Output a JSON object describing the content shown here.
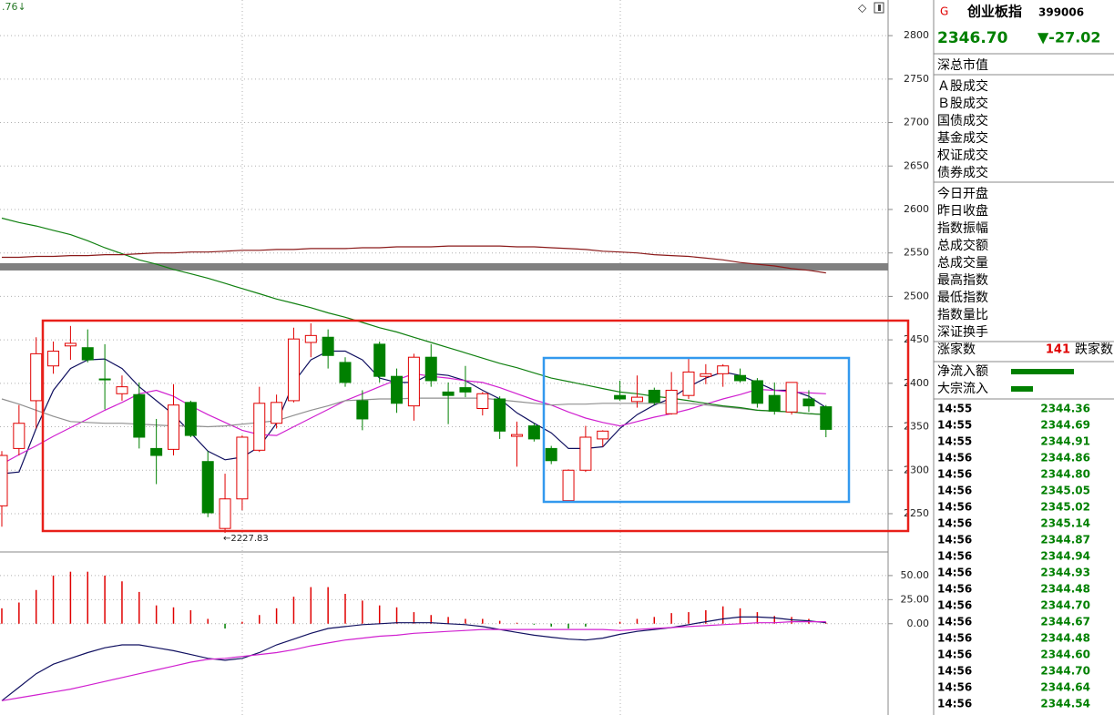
{
  "header": {
    "top_left": ".76↓"
  },
  "chart_data": [
    {
      "type": "candlestick",
      "categories": [
        null,
        null,
        null,
        null,
        null,
        null,
        null,
        null,
        null,
        null,
        null,
        null,
        null,
        null,
        null,
        null,
        null,
        null,
        null,
        null,
        null,
        null,
        null,
        null,
        null,
        null,
        null,
        null,
        null,
        null,
        null,
        null,
        null,
        null,
        null,
        null,
        null,
        null,
        null,
        null,
        null,
        null,
        null,
        null,
        null,
        null,
        null,
        null,
        null
      ],
      "open": [
        2259,
        2325,
        2380,
        2420,
        2443,
        2441,
        2405,
        2388,
        2387,
        2325,
        2324,
        2378,
        2310,
        2233,
        2267,
        2323,
        2354,
        2380,
        2447,
        2453,
        2424,
        2380,
        2445,
        2408,
        2374,
        2430,
        2390,
        2395,
        2371,
        2382,
        2339,
        2351,
        2325,
        2265,
        2300,
        2336,
        2386,
        2379,
        2392,
        2365,
        2386,
        2408,
        2411,
        2409,
        2403,
        2386,
        2367,
        2382,
        2373
      ],
      "high": [
        2322,
        2375,
        2453,
        2448,
        2466,
        2462,
        2445,
        2409,
        2401,
        2359,
        2399,
        2380,
        2322,
        2296,
        2340,
        2396,
        2387,
        2464,
        2469,
        2462,
        2430,
        2392,
        2448,
        2417,
        2434,
        2445,
        2401,
        2420,
        2390,
        2385,
        2356,
        2354,
        2328,
        2301,
        2351,
        2346,
        2403,
        2409,
        2395,
        2413,
        2430,
        2422,
        2422,
        2417,
        2406,
        2401,
        2401,
        2392,
        2375
      ],
      "low": [
        2235,
        2317,
        2348,
        2411,
        2427,
        2424,
        2370,
        2380,
        2325,
        2284,
        2317,
        2338,
        2246,
        2227.83,
        2254,
        2321,
        2348,
        2378,
        2430,
        2417,
        2396,
        2346,
        2401,
        2366,
        2357,
        2396,
        2353,
        2384,
        2363,
        2336,
        2304,
        2333,
        2307,
        2265,
        2298,
        2327,
        2380,
        2372,
        2375,
        2364,
        2382,
        2399,
        2396,
        2401,
        2372,
        2364,
        2364,
        2367,
        2338
      ],
      "close": [
        2317,
        2354,
        2434,
        2437,
        2446,
        2427,
        2404,
        2396,
        2338,
        2317,
        2375,
        2340,
        2251,
        2267,
        2338,
        2377,
        2378,
        2451,
        2455,
        2432,
        2401,
        2359,
        2408,
        2377,
        2430,
        2403,
        2386,
        2390,
        2388,
        2345,
        2341,
        2336,
        2311,
        2300,
        2338,
        2345,
        2382,
        2384,
        2378,
        2392,
        2413,
        2411,
        2420,
        2403,
        2377,
        2368,
        2401,
        2374,
        2347
      ],
      "up_color": "#e00000",
      "down_color": "#008000",
      "series": [
        {
          "color": "#101060",
          "values": [
            2296,
            2298,
            2348,
            2392,
            2417,
            2427,
            2428,
            2417,
            2396,
            2380,
            2364,
            2343,
            2322,
            2312,
            2315,
            2327,
            2354,
            2401,
            2427,
            2437,
            2437,
            2427,
            2406,
            2401,
            2401,
            2411,
            2409,
            2403,
            2392,
            2382,
            2366,
            2354,
            2343,
            2325,
            2325,
            2327,
            2348,
            2364,
            2375,
            2383,
            2396,
            2406,
            2413,
            2409,
            2401,
            2392,
            2392,
            2385,
            2372
          ]
        },
        {
          "color": "#d020d0",
          "values": [
            2307,
            2318,
            2328,
            2339,
            2349,
            2359,
            2369,
            2378,
            2388,
            2392,
            2385,
            2374,
            2364,
            2355,
            2346,
            2341,
            2340,
            2350,
            2360,
            2370,
            2380,
            2388,
            2396,
            2404,
            2411,
            2408,
            2406,
            2403,
            2401,
            2395,
            2388,
            2381,
            2375,
            2367,
            2360,
            2355,
            2351,
            2356,
            2361,
            2365,
            2370,
            2376,
            2382,
            2387,
            2393,
            2392,
            2390,
            2389,
            2388
          ]
        },
        {
          "color": "#909090",
          "values": [
            2382,
            2376,
            2369,
            2362,
            2356,
            2355,
            2354,
            2354,
            2353,
            2352,
            2351,
            2351,
            2350,
            2351,
            2353,
            2355,
            2357,
            2363,
            2369,
            2374,
            2380,
            2381,
            2382,
            2382,
            2383,
            2383,
            2383,
            2383,
            2383,
            2381,
            2379,
            2377,
            2375,
            2376,
            2376,
            2377,
            2377,
            2377,
            2377,
            2377,
            2377,
            2375,
            2373,
            2371,
            2369,
            2368,
            2367,
            2365,
            2364
          ]
        },
        {
          "color": "#108010",
          "values": [
            2590,
            2585,
            2581,
            2576,
            2571,
            2564,
            2556,
            2549,
            2542,
            2537,
            2531,
            2526,
            2521,
            2515,
            2509,
            2503,
            2497,
            2492,
            2487,
            2481,
            2476,
            2470,
            2464,
            2459,
            2453,
            2447,
            2441,
            2435,
            2429,
            2423,
            2418,
            2412,
            2406,
            2402,
            2398,
            2394,
            2390,
            2388,
            2385,
            2383,
            2380,
            2377,
            2374,
            2372,
            2369,
            2368,
            2367,
            2365,
            2364
          ]
        },
        {
          "color": "#8b1a1a",
          "values": [
            2545,
            2545,
            2546,
            2546,
            2547,
            2547,
            2548,
            2548,
            2549,
            2550,
            2550,
            2551,
            2551,
            2552,
            2553,
            2553,
            2554,
            2554,
            2555,
            2555,
            2555,
            2556,
            2556,
            2557,
            2557,
            2557,
            2558,
            2558,
            2558,
            2558,
            2557,
            2557,
            2556,
            2555,
            2554,
            2552,
            2551,
            2550,
            2548,
            2547,
            2546,
            2544,
            2542,
            2539,
            2537,
            2535,
            2532,
            2530,
            2527
          ]
        }
      ],
      "level_line": {
        "value": 2534,
        "color": "#808080"
      },
      "annotation": "←2227.83",
      "ylim": [
        2207,
        2841
      ],
      "yticks": [
        2250,
        2300,
        2350,
        2400,
        2450,
        2500,
        2550,
        2600,
        2650,
        2700,
        2750,
        2800
      ],
      "grid": true
    },
    {
      "type": "bar",
      "values": [
        16,
        22,
        35,
        50,
        54,
        54,
        50,
        44,
        33,
        19,
        17,
        14,
        5,
        -5,
        2,
        9,
        16,
        28,
        38,
        38,
        31,
        24,
        19,
        17,
        12,
        9,
        7,
        5,
        5,
        3,
        1,
        -1,
        -3,
        -5,
        -3,
        0,
        2,
        5,
        7,
        11,
        12,
        14,
        18,
        16,
        12,
        8,
        7,
        5,
        1
      ],
      "up_color": "#e00000",
      "down_color": "#008000",
      "series": [
        {
          "color": "#101060",
          "values": [
            -80,
            -66,
            -52,
            -42,
            -36,
            -30,
            -25,
            -22,
            -22,
            -25,
            -28,
            -32,
            -36,
            -38,
            -36,
            -30,
            -22,
            -16,
            -10,
            -5,
            -3,
            -1,
            0,
            1,
            1,
            1,
            0,
            -1,
            -3,
            -6,
            -9,
            -12,
            -14,
            -16,
            -17,
            -15,
            -11,
            -8,
            -6,
            -4,
            -1,
            2,
            5,
            7,
            7,
            6,
            4,
            3,
            1
          ]
        },
        {
          "color": "#d020d0",
          "values": [
            -80,
            -77,
            -74,
            -71,
            -68,
            -64,
            -60,
            -56,
            -52,
            -48,
            -44,
            -40,
            -37,
            -36,
            -34,
            -32,
            -30,
            -27,
            -23,
            -20,
            -17,
            -15,
            -13,
            -12,
            -10,
            -9,
            -8,
            -7,
            -6,
            -6,
            -6,
            -6,
            -6,
            -6,
            -6,
            -6,
            -7,
            -6,
            -5,
            -4,
            -3,
            -2,
            -1,
            0,
            1,
            1,
            2,
            2,
            2
          ]
        }
      ],
      "ylim": [
        -92,
        66
      ],
      "yticks": [
        {
          "value": 0,
          "label": "0.00"
        },
        {
          "value": 25,
          "label": "25.00"
        },
        {
          "value": 50,
          "label": "50.00"
        }
      ],
      "grid": true
    }
  ],
  "side_panel": {
    "marker": "G",
    "name": "创业板指",
    "code": "399006",
    "price": "2346.70",
    "change": "▼-27.02",
    "groups": [
      [
        "深总市值"
      ],
      [
        "Ａ股成交",
        "Ｂ股成交",
        "国债成交",
        "基金成交",
        "权证成交",
        "债券成交"
      ],
      [
        "今日开盘",
        "昨日收盘",
        "指数振幅",
        "总成交额",
        "总成交量",
        "最高指数",
        "最低指数",
        "指数量比",
        "深证换手"
      ]
    ],
    "advance_label": "涨家数",
    "advance_count": "141",
    "decline_label": "跌家数",
    "flows": [
      "净流入额",
      "大宗流入"
    ],
    "ticks": [
      {
        "time": "14:55",
        "price": "2344.36"
      },
      {
        "time": "14:55",
        "price": "2344.69"
      },
      {
        "time": "14:55",
        "price": "2344.91"
      },
      {
        "time": "14:56",
        "price": "2344.86"
      },
      {
        "time": "14:56",
        "price": "2344.80"
      },
      {
        "time": "14:56",
        "price": "2345.05"
      },
      {
        "time": "14:56",
        "price": "2345.02"
      },
      {
        "time": "14:56",
        "price": "2345.14"
      },
      {
        "time": "14:56",
        "price": "2344.87"
      },
      {
        "time": "14:56",
        "price": "2344.94"
      },
      {
        "time": "14:56",
        "price": "2344.93"
      },
      {
        "time": "14:56",
        "price": "2344.48"
      },
      {
        "time": "14:56",
        "price": "2344.70"
      },
      {
        "time": "14:56",
        "price": "2344.67"
      },
      {
        "time": "14:56",
        "price": "2344.48"
      },
      {
        "time": "14:56",
        "price": "2344.60"
      },
      {
        "time": "14:56",
        "price": "2344.70"
      },
      {
        "time": "14:56",
        "price": "2344.64"
      },
      {
        "time": "14:56",
        "price": "2344.54"
      }
    ]
  }
}
